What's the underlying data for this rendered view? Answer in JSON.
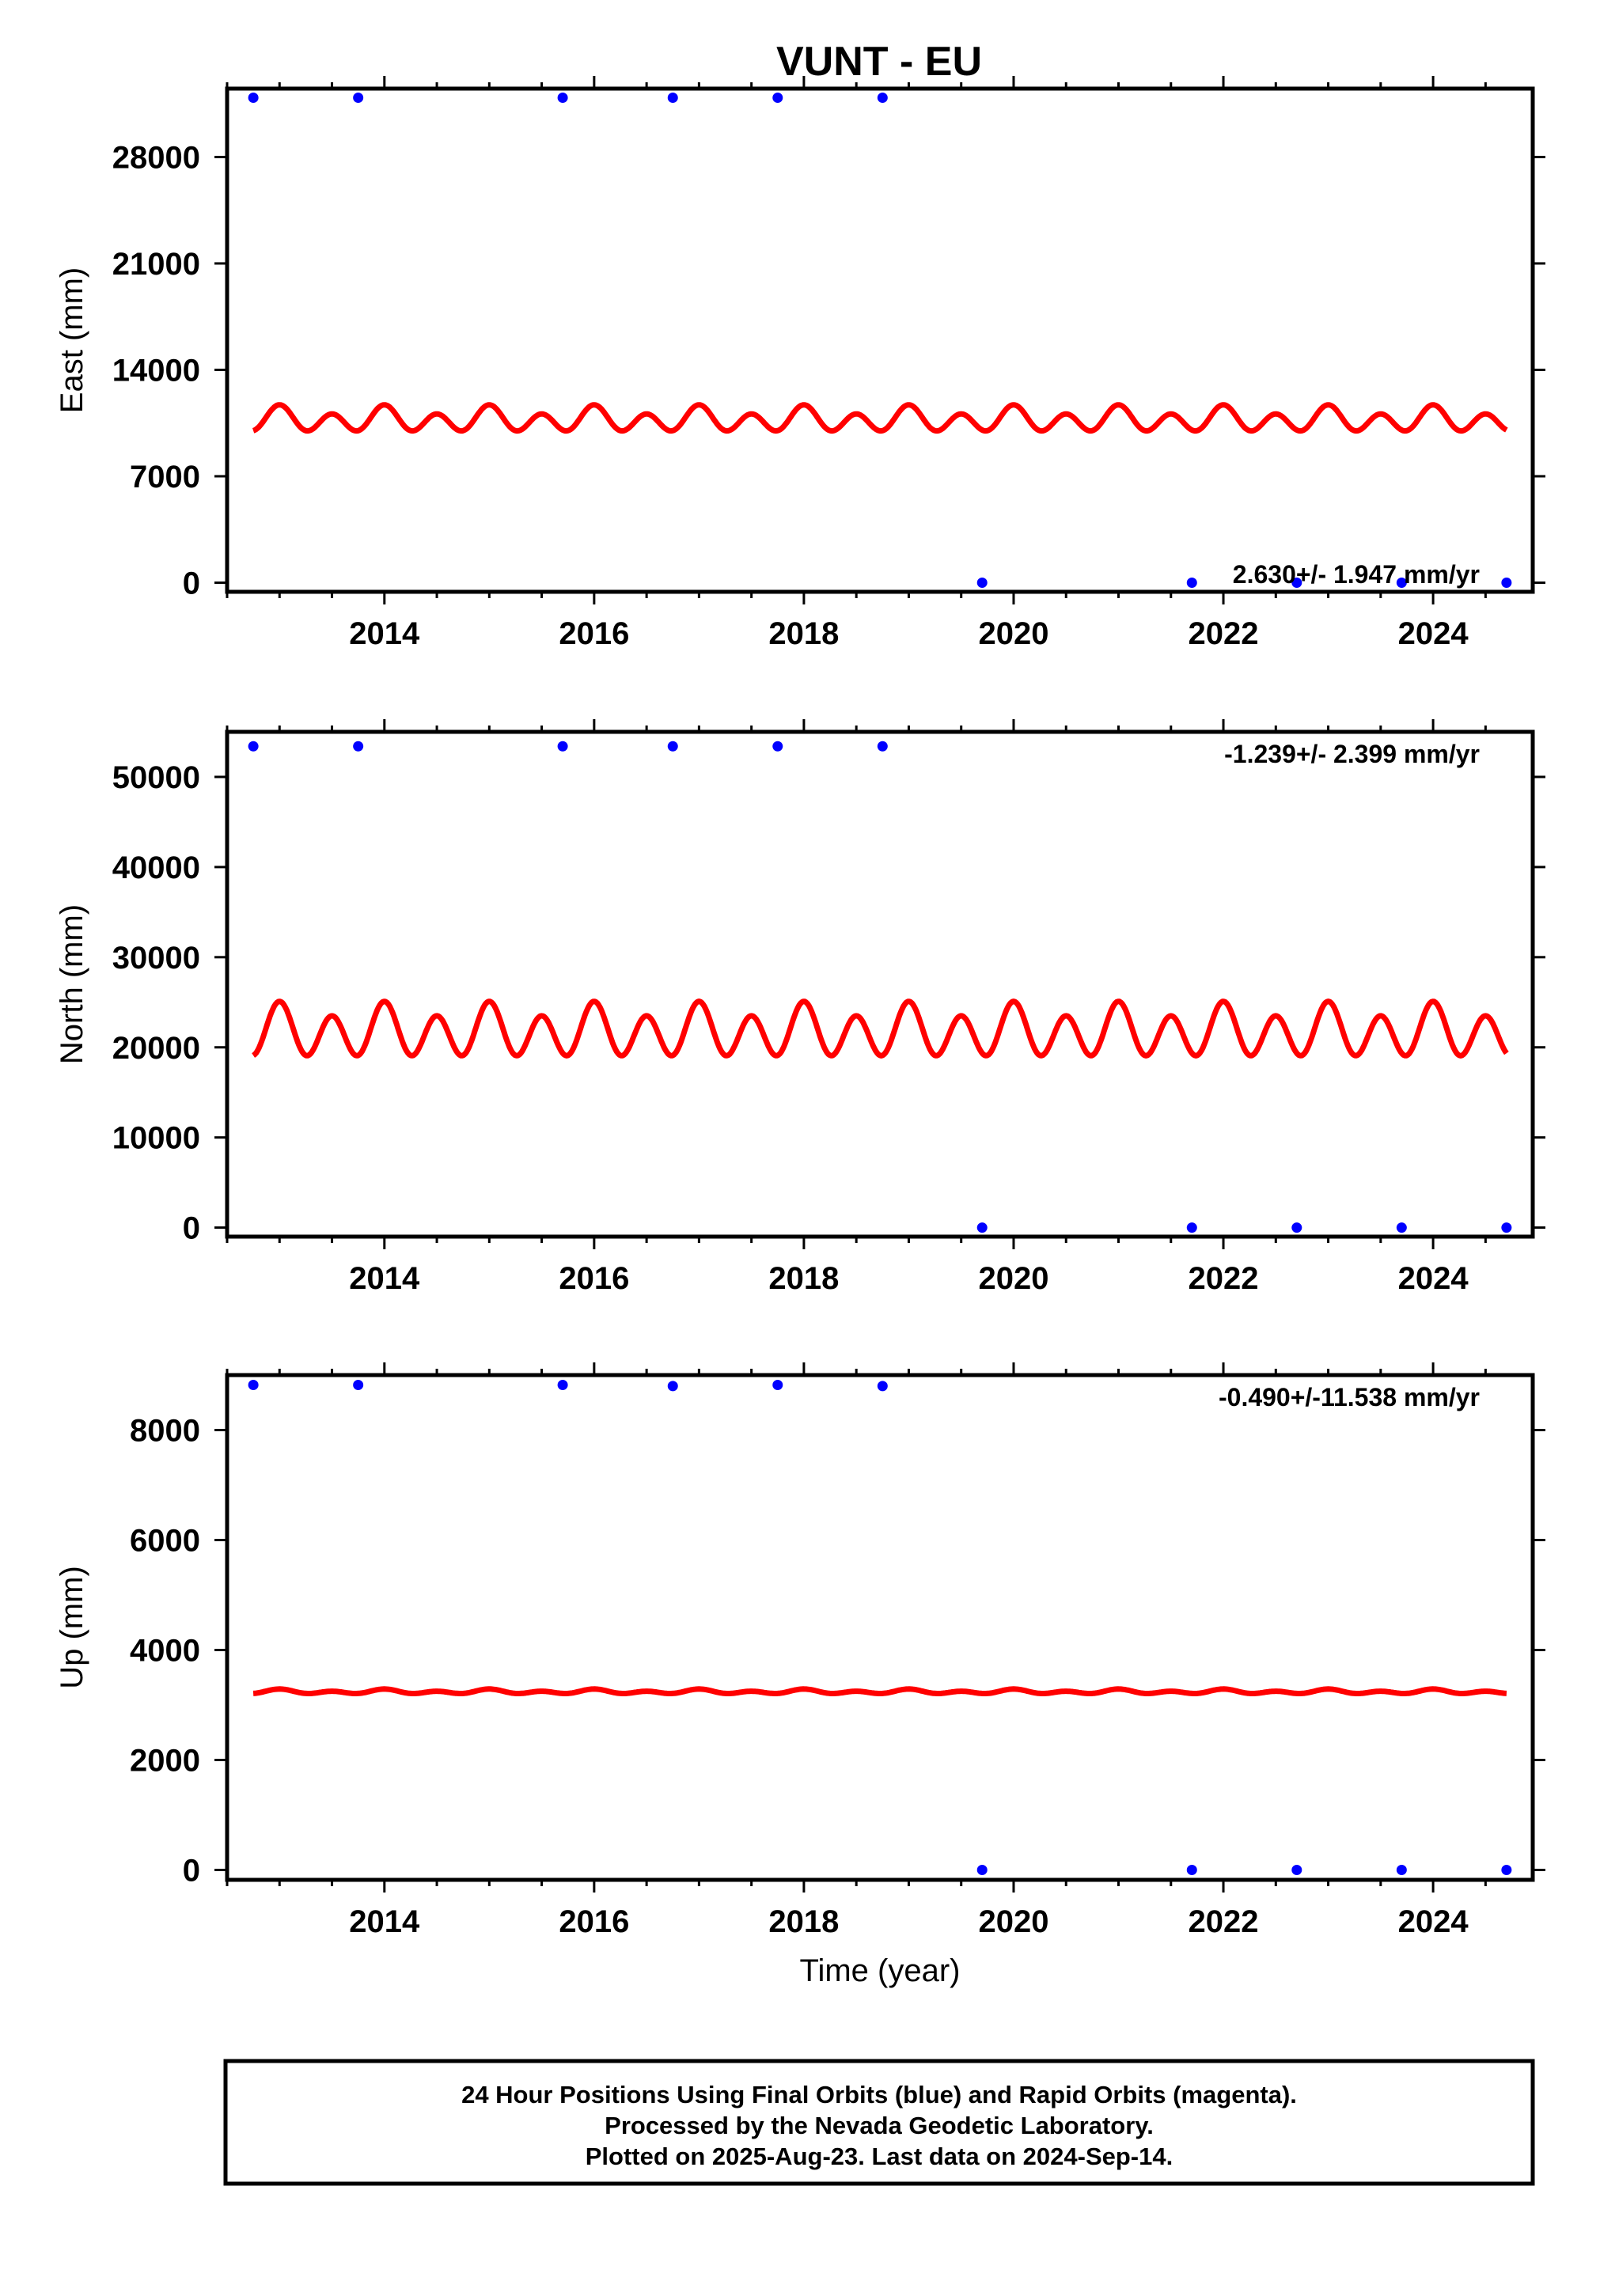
{
  "title": "VUNT - EU",
  "colors": {
    "points": "#0000ff",
    "model": "#ff0000",
    "frame": "#000000"
  },
  "chart_data": [
    {
      "type": "scatter",
      "component": "East",
      "ylabel": "East (mm)",
      "xlabel": "",
      "rate_text": "2.630+/- 1.947 mm/yr",
      "xlim": [
        2012.5,
        2024.95
      ],
      "ylim": [
        -600,
        32500
      ],
      "xticks": [
        2014,
        2016,
        2018,
        2020,
        2022,
        2024
      ],
      "xtick_labels": [
        "2014",
        "2016",
        "2018",
        "2020",
        "2022",
        "2024"
      ],
      "yticks": [
        0,
        7000,
        14000,
        21000,
        28000
      ],
      "ytick_labels": [
        "0",
        "7000",
        "14000",
        "21000",
        "28000"
      ],
      "points": {
        "x": [
          2012.75,
          2013.75,
          2015.7,
          2016.75,
          2017.75,
          2018.75,
          2019.7,
          2021.7,
          2022.7,
          2023.7,
          2024.7
        ],
        "y": [
          31900,
          31900,
          31900,
          31900,
          31900,
          31900,
          0,
          0,
          0,
          0,
          0
        ]
      },
      "model": {
        "x_start": 2012.75,
        "x_end": 2024.7,
        "offset": 10700,
        "annual_amp": 300,
        "semiannual_amp": 700
      }
    },
    {
      "type": "scatter",
      "component": "North",
      "ylabel": "North (mm)",
      "xlabel": "",
      "rate_text": "-1.239+/- 2.399 mm/yr",
      "xlim": [
        2012.5,
        2024.95
      ],
      "ylim": [
        -1000,
        55000
      ],
      "xticks": [
        2014,
        2016,
        2018,
        2020,
        2022,
        2024
      ],
      "xtick_labels": [
        "2014",
        "2016",
        "2018",
        "2020",
        "2022",
        "2024"
      ],
      "yticks": [
        0,
        10000,
        20000,
        30000,
        40000,
        50000
      ],
      "ytick_labels": [
        "0",
        "10000",
        "20000",
        "30000",
        "40000",
        "50000"
      ],
      "points": {
        "x": [
          2012.75,
          2013.75,
          2015.7,
          2016.75,
          2017.75,
          2018.75,
          2019.7,
          2021.7,
          2022.7,
          2023.7,
          2024.7
        ],
        "y": [
          53400,
          53400,
          53400,
          53400,
          53400,
          53400,
          0,
          0,
          0,
          0,
          0
        ]
      },
      "model": {
        "x_start": 2012.75,
        "x_end": 2024.7,
        "offset": 21700,
        "annual_amp": 800,
        "semiannual_amp": 2600
      }
    },
    {
      "type": "scatter",
      "component": "Up",
      "ylabel": "Up (mm)",
      "xlabel": "Time (year)",
      "rate_text": "-0.490+/-11.538 mm/yr",
      "xlim": [
        2012.5,
        2024.95
      ],
      "ylim": [
        -180,
        9000
      ],
      "xticks": [
        2014,
        2016,
        2018,
        2020,
        2022,
        2024
      ],
      "xtick_labels": [
        "2014",
        "2016",
        "2018",
        "2020",
        "2022",
        "2024"
      ],
      "yticks": [
        0,
        2000,
        4000,
        6000,
        8000
      ],
      "ytick_labels": [
        "0",
        "2000",
        "4000",
        "6000",
        "8000"
      ],
      "points": {
        "x": [
          2012.75,
          2013.75,
          2015.7,
          2016.75,
          2017.75,
          2018.75,
          2019.7,
          2021.7,
          2022.7,
          2023.7,
          2024.7
        ],
        "y": [
          8820,
          8820,
          8820,
          8800,
          8820,
          8800,
          0,
          0,
          0,
          0,
          0
        ]
      },
      "model": {
        "x_start": 2012.75,
        "x_end": 2024.7,
        "offset": 3240,
        "annual_amp": 20,
        "semiannual_amp": 30
      }
    }
  ],
  "footer": {
    "line1": "24 Hour Positions Using Final Orbits (blue) and Rapid Orbits (magenta).",
    "line2": "Processed by the Nevada Geodetic Laboratory.",
    "line3": "Plotted on 2025-Aug-23. Last data on 2024-Sep-14."
  }
}
